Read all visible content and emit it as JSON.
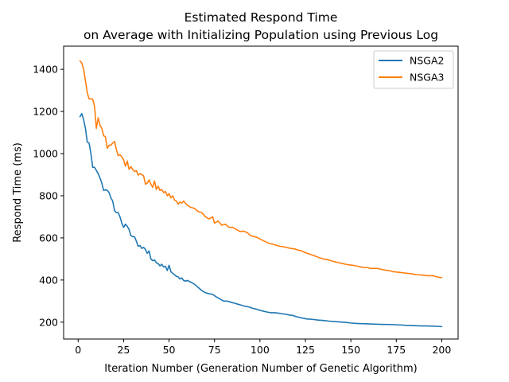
{
  "chart_data": {
    "type": "line",
    "title_line1": "Estimated Respond Time",
    "title_line2": "on Average with Initializing Population using Previous Log",
    "xlabel": "Iteration Number (Generation Number of Genetic Algorithm)",
    "ylabel": "Respond Time (ms)",
    "xlim": [
      -8,
      209
    ],
    "ylim": [
      120,
      1510
    ],
    "x_ticks": [
      0,
      25,
      50,
      75,
      100,
      125,
      150,
      175,
      200
    ],
    "y_ticks": [
      200,
      400,
      600,
      800,
      1000,
      1200,
      1400
    ],
    "grid": false,
    "legend_placement": "top-right",
    "series": [
      {
        "name": "NSGA2",
        "color": "#1f77b4",
        "points": [
          [
            1,
            1175
          ],
          [
            2,
            1190
          ],
          [
            3,
            1160
          ],
          [
            4,
            1120
          ],
          [
            5,
            1055
          ],
          [
            6,
            1050
          ],
          [
            7,
            1000
          ],
          [
            8,
            935
          ],
          [
            9,
            935
          ],
          [
            10,
            920
          ],
          [
            11,
            905
          ],
          [
            12,
            885
          ],
          [
            13,
            860
          ],
          [
            14,
            825
          ],
          [
            15,
            828
          ],
          [
            16,
            826
          ],
          [
            17,
            815
          ],
          [
            18,
            790
          ],
          [
            19,
            775
          ],
          [
            20,
            730
          ],
          [
            21,
            720
          ],
          [
            22,
            720
          ],
          [
            23,
            700
          ],
          [
            24,
            670
          ],
          [
            25,
            650
          ],
          [
            26,
            665
          ],
          [
            27,
            655
          ],
          [
            28,
            640
          ],
          [
            29,
            610
          ],
          [
            30,
            606
          ],
          [
            31,
            605
          ],
          [
            32,
            585
          ],
          [
            33,
            560
          ],
          [
            34,
            564
          ],
          [
            35,
            550
          ],
          [
            36,
            555
          ],
          [
            37,
            545
          ],
          [
            38,
            527
          ],
          [
            39,
            538
          ],
          [
            40,
            500
          ],
          [
            41,
            492
          ],
          [
            42,
            495
          ],
          [
            43,
            482
          ],
          [
            44,
            478
          ],
          [
            45,
            467
          ],
          [
            46,
            475
          ],
          [
            47,
            462
          ],
          [
            48,
            465
          ],
          [
            49,
            445
          ],
          [
            50,
            470
          ],
          [
            51,
            440
          ],
          [
            52,
            432
          ],
          [
            53,
            425
          ],
          [
            54,
            418
          ],
          [
            55,
            415
          ],
          [
            56,
            405
          ],
          [
            57,
            410
          ],
          [
            58,
            398
          ],
          [
            59,
            395
          ],
          [
            60,
            398
          ],
          [
            62,
            390
          ],
          [
            64,
            380
          ],
          [
            66,
            365
          ],
          [
            68,
            350
          ],
          [
            70,
            340
          ],
          [
            72,
            335
          ],
          [
            74,
            332
          ],
          [
            76,
            320
          ],
          [
            78,
            310
          ],
          [
            80,
            300
          ],
          [
            82,
            300
          ],
          [
            84,
            295
          ],
          [
            86,
            290
          ],
          [
            88,
            285
          ],
          [
            90,
            280
          ],
          [
            92,
            275
          ],
          [
            94,
            272
          ],
          [
            96,
            266
          ],
          [
            98,
            262
          ],
          [
            100,
            256
          ],
          [
            102,
            252
          ],
          [
            104,
            248
          ],
          [
            106,
            245
          ],
          [
            108,
            245
          ],
          [
            110,
            243
          ],
          [
            112,
            240
          ],
          [
            114,
            238
          ],
          [
            116,
            234
          ],
          [
            118,
            232
          ],
          [
            120,
            226
          ],
          [
            122,
            222
          ],
          [
            124,
            218
          ],
          [
            126,
            215
          ],
          [
            128,
            214
          ],
          [
            130,
            212
          ],
          [
            132,
            210
          ],
          [
            135,
            208
          ],
          [
            138,
            205
          ],
          [
            141,
            203
          ],
          [
            144,
            201
          ],
          [
            147,
            199
          ],
          [
            150,
            196
          ],
          [
            153,
            194
          ],
          [
            156,
            193
          ],
          [
            159,
            192
          ],
          [
            162,
            191
          ],
          [
            165,
            190
          ],
          [
            168,
            189
          ],
          [
            171,
            189
          ],
          [
            174,
            188
          ],
          [
            177,
            187
          ],
          [
            180,
            185
          ],
          [
            183,
            184
          ],
          [
            186,
            183
          ],
          [
            189,
            182
          ],
          [
            192,
            182
          ],
          [
            195,
            181
          ],
          [
            198,
            180
          ],
          [
            200,
            179
          ]
        ]
      },
      {
        "name": "NSGA3",
        "color": "#ff7f0e",
        "points": [
          [
            1,
            1440
          ],
          [
            2,
            1430
          ],
          [
            3,
            1400
          ],
          [
            4,
            1345
          ],
          [
            5,
            1290
          ],
          [
            6,
            1260
          ],
          [
            7,
            1260
          ],
          [
            8,
            1258
          ],
          [
            9,
            1225
          ],
          [
            10,
            1120
          ],
          [
            11,
            1170
          ],
          [
            12,
            1135
          ],
          [
            13,
            1120
          ],
          [
            14,
            1085
          ],
          [
            15,
            1080
          ],
          [
            16,
            1025
          ],
          [
            17,
            1040
          ],
          [
            18,
            1040
          ],
          [
            19,
            1050
          ],
          [
            20,
            1058
          ],
          [
            21,
            1020
          ],
          [
            22,
            990
          ],
          [
            23,
            995
          ],
          [
            24,
            985
          ],
          [
            25,
            970
          ],
          [
            26,
            940
          ],
          [
            27,
            965
          ],
          [
            28,
            925
          ],
          [
            29,
            938
          ],
          [
            30,
            925
          ],
          [
            31,
            915
          ],
          [
            32,
            920
          ],
          [
            33,
            898
          ],
          [
            34,
            905
          ],
          [
            35,
            900
          ],
          [
            36,
            895
          ],
          [
            37,
            855
          ],
          [
            38,
            860
          ],
          [
            39,
            875
          ],
          [
            40,
            855
          ],
          [
            41,
            840
          ],
          [
            42,
            870
          ],
          [
            43,
            830
          ],
          [
            44,
            845
          ],
          [
            45,
            825
          ],
          [
            46,
            830
          ],
          [
            47,
            815
          ],
          [
            48,
            820
          ],
          [
            49,
            800
          ],
          [
            50,
            810
          ],
          [
            51,
            790
          ],
          [
            52,
            800
          ],
          [
            53,
            780
          ],
          [
            54,
            775
          ],
          [
            55,
            760
          ],
          [
            56,
            770
          ],
          [
            57,
            765
          ],
          [
            58,
            775
          ],
          [
            60,
            755
          ],
          [
            62,
            745
          ],
          [
            64,
            740
          ],
          [
            66,
            725
          ],
          [
            68,
            720
          ],
          [
            70,
            700
          ],
          [
            72,
            690
          ],
          [
            74,
            700
          ],
          [
            75,
            670
          ],
          [
            77,
            680
          ],
          [
            79,
            660
          ],
          [
            81,
            665
          ],
          [
            83,
            650
          ],
          [
            85,
            650
          ],
          [
            87,
            640
          ],
          [
            89,
            630
          ],
          [
            91,
            632
          ],
          [
            93,
            625
          ],
          [
            95,
            610
          ],
          [
            97,
            606
          ],
          [
            99,
            600
          ],
          [
            101,
            590
          ],
          [
            103,
            582
          ],
          [
            105,
            574
          ],
          [
            107,
            570
          ],
          [
            109,
            565
          ],
          [
            111,
            560
          ],
          [
            113,
            558
          ],
          [
            115,
            554
          ],
          [
            117,
            550
          ],
          [
            119,
            548
          ],
          [
            121,
            542
          ],
          [
            123,
            538
          ],
          [
            125,
            530
          ],
          [
            127,
            524
          ],
          [
            129,
            518
          ],
          [
            131,
            512
          ],
          [
            133,
            505
          ],
          [
            135,
            500
          ],
          [
            137,
            497
          ],
          [
            139,
            492
          ],
          [
            141,
            487
          ],
          [
            143,
            483
          ],
          [
            145,
            479
          ],
          [
            147,
            475
          ],
          [
            149,
            472
          ],
          [
            151,
            470
          ],
          [
            153,
            467
          ],
          [
            155,
            463
          ],
          [
            157,
            459
          ],
          [
            159,
            459
          ],
          [
            161,
            455
          ],
          [
            163,
            455
          ],
          [
            165,
            455
          ],
          [
            167,
            450
          ],
          [
            169,
            447
          ],
          [
            171,
            445
          ],
          [
            173,
            440
          ],
          [
            175,
            438
          ],
          [
            177,
            436
          ],
          [
            179,
            434
          ],
          [
            181,
            432
          ],
          [
            183,
            430
          ],
          [
            185,
            427
          ],
          [
            187,
            425
          ],
          [
            189,
            424
          ],
          [
            191,
            422
          ],
          [
            193,
            420
          ],
          [
            195,
            421
          ],
          [
            197,
            416
          ],
          [
            199,
            412
          ],
          [
            200,
            412
          ]
        ]
      }
    ]
  }
}
